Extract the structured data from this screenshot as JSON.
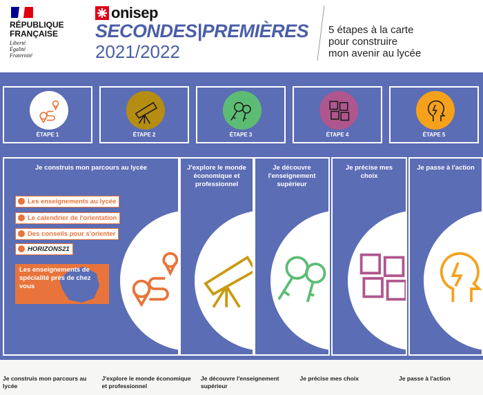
{
  "header": {
    "republique": [
      "RÉPUBLIQUE",
      "FRANÇAISE"
    ],
    "motto": [
      "Liberté",
      "Égalité",
      "Fraternité"
    ],
    "brand": "onisep",
    "title": "SECONDES|PREMIÈRES",
    "year": "2021/2022",
    "tagline": [
      "5 étapes à la carte",
      "pour construire",
      "mon avenir au lycée"
    ]
  },
  "steps": [
    {
      "label": "ÉTAPE 1",
      "color": "#ffffff",
      "icon": "#e8743b"
    },
    {
      "label": "ÉTAPE 2",
      "color": "#b58d12",
      "icon": "#1d1d1d"
    },
    {
      "label": "ÉTAPE 3",
      "color": "#5cbc74",
      "icon": "#1d1d1d"
    },
    {
      "label": "ÉTAPE 4",
      "color": "#b0568f",
      "icon": "#1d1d1d"
    },
    {
      "label": "ÉTAPE 5",
      "color": "#f5a11c",
      "icon": "#1d1d1d"
    }
  ],
  "panels": [
    {
      "title": "Je construis mon parcours au lycée",
      "icon": "#e8743b"
    },
    {
      "title": "J'explore le monde économique et professionnel",
      "icon": "#c99a12"
    },
    {
      "title": "Je découvre l'enseignement supérieur",
      "icon": "#5cbc74"
    },
    {
      "title": "Je précise mes choix",
      "icon": "#b0568f"
    },
    {
      "title": "Je passe à l'action",
      "icon": "#f5a11c"
    }
  ],
  "links": [
    "Les enseignements au lycée",
    "Le calendrier de l'orientation",
    "Des conseils pour s'orienter"
  ],
  "horizons": "HORIZONS21",
  "map_link": "Les enseignements de spécialité près de chez vous",
  "footer": [
    "Je construis mon parcours au lycée",
    "J'explore le monde économique et professionnel",
    "Je découvre l'enseignement supérieur",
    "Je précise mes choix",
    "Je passe à l'action"
  ]
}
